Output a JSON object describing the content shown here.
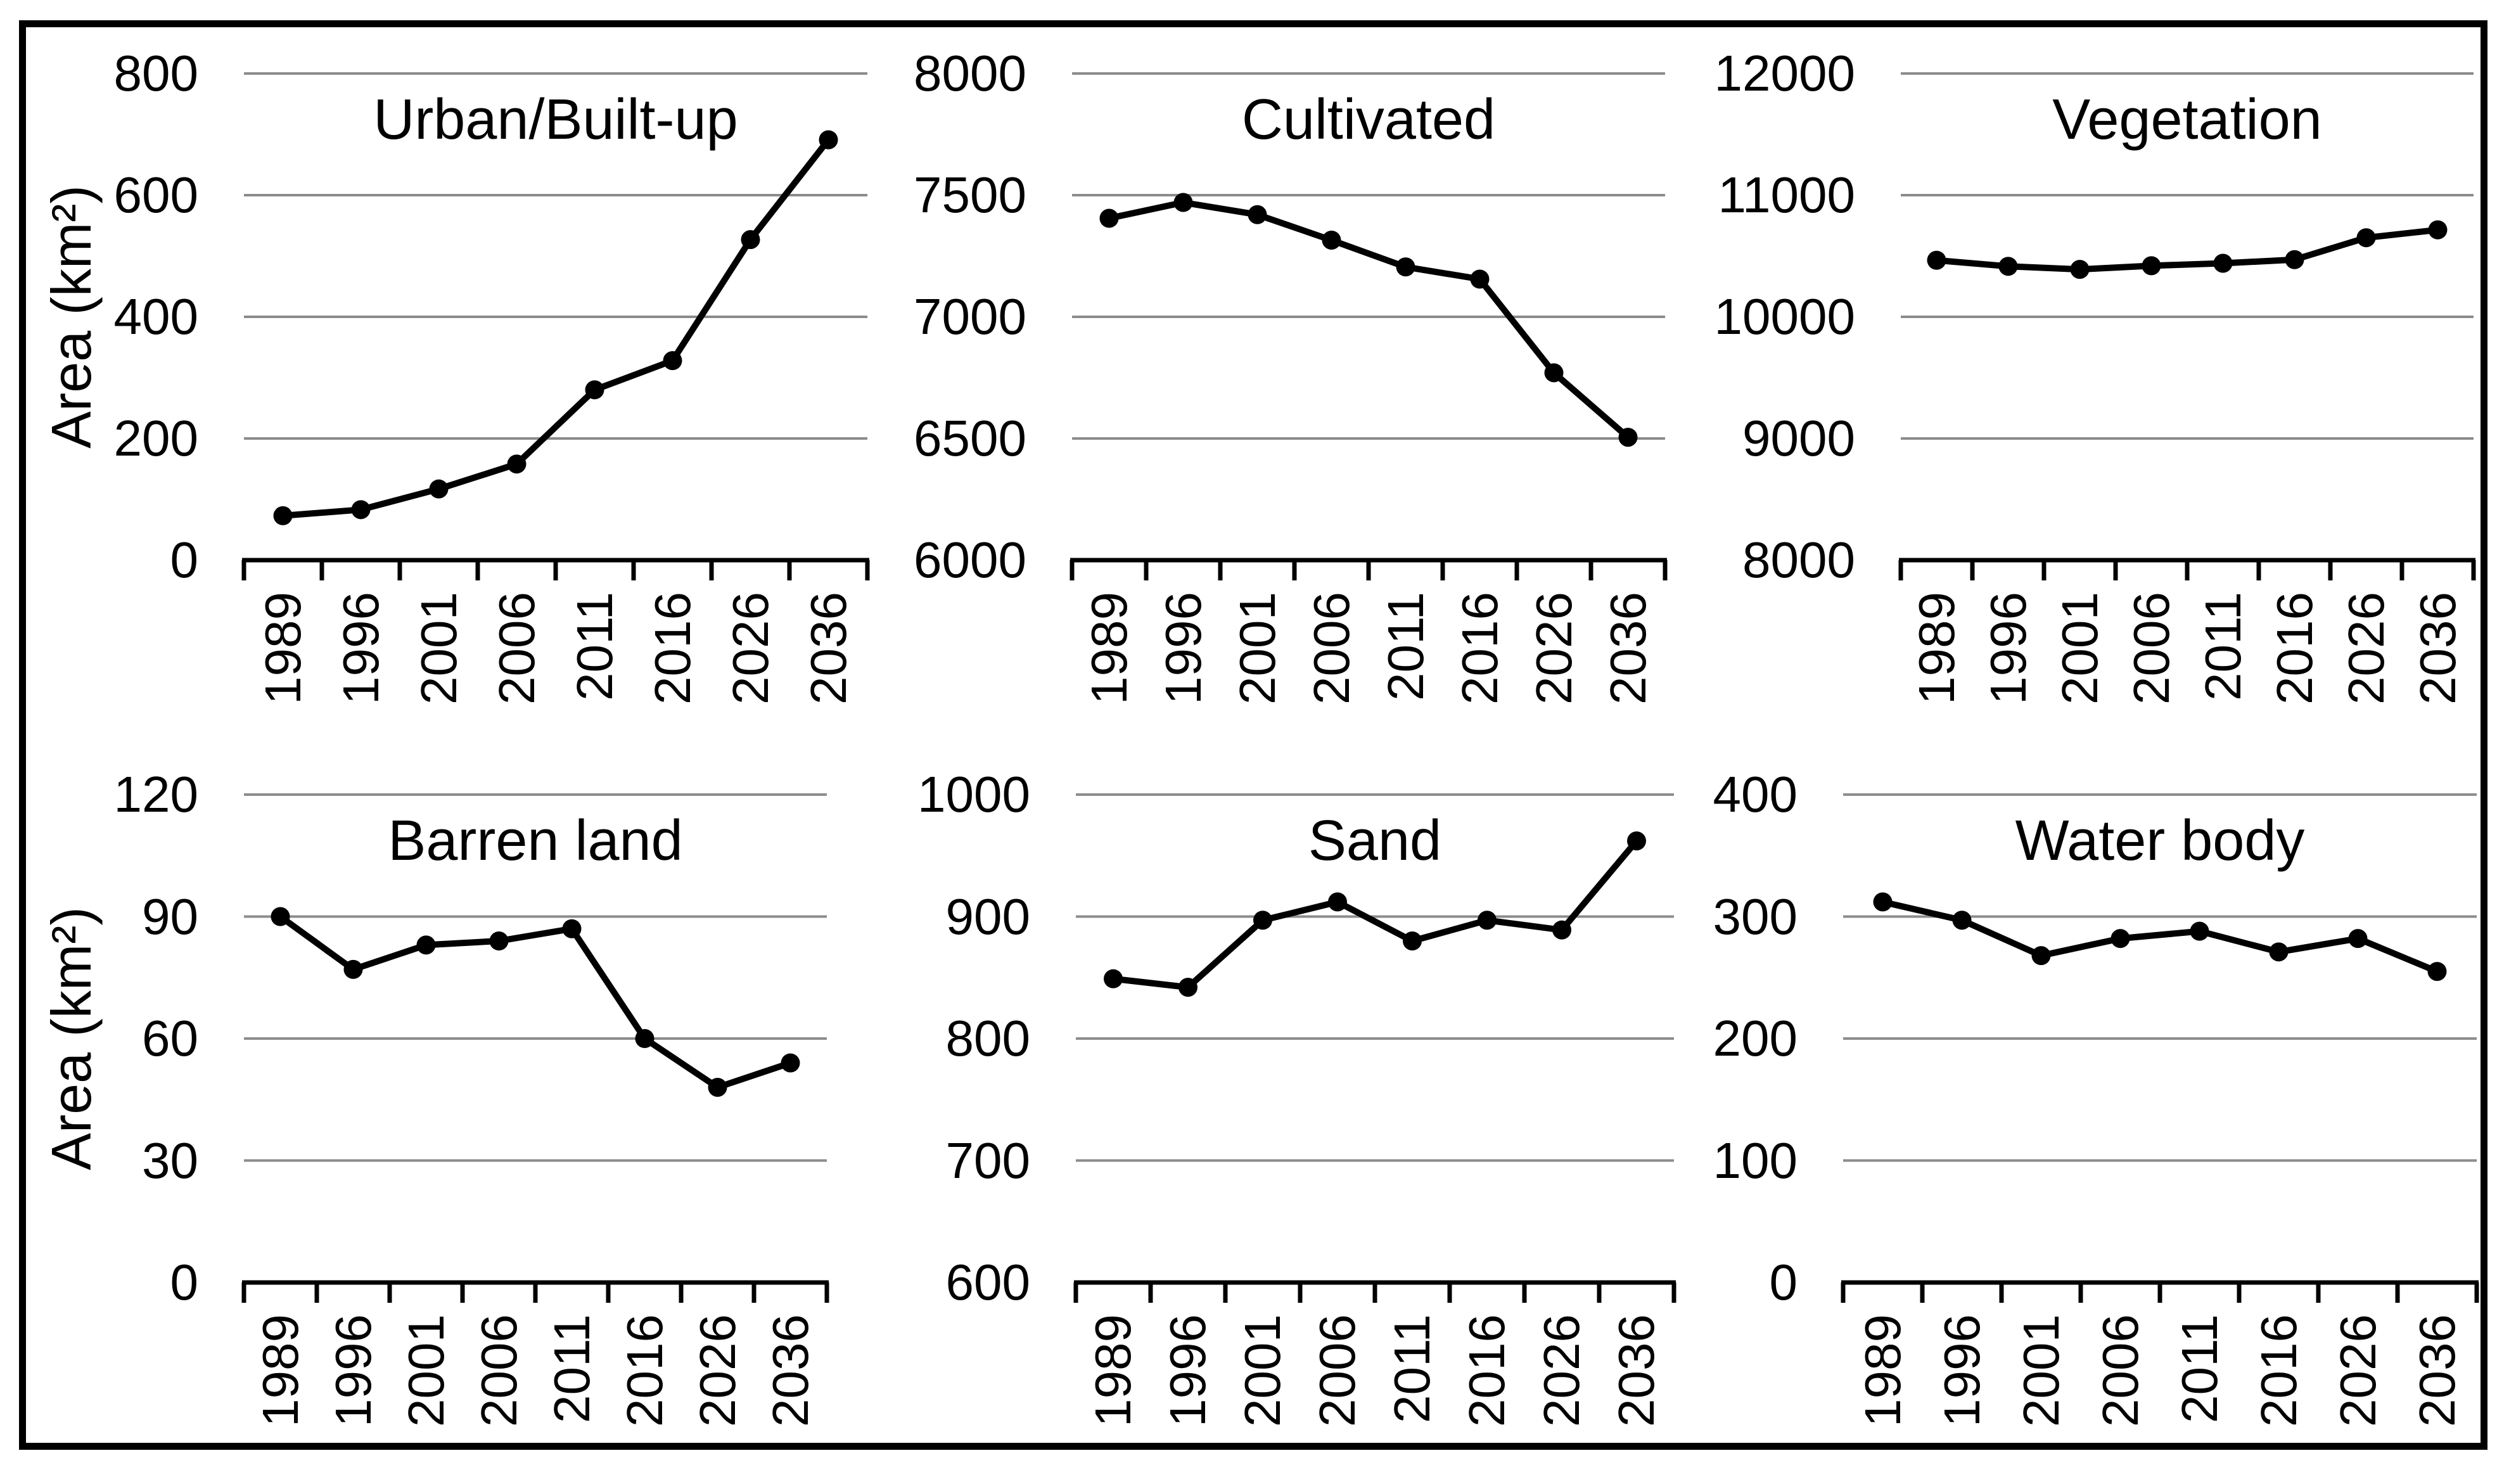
{
  "ylabel": "Area (km²)",
  "years": [
    "1989",
    "1996",
    "2001",
    "2006",
    "2011",
    "2016",
    "2026",
    "2036"
  ],
  "colors": {
    "background": "#ffffff",
    "frame": "#000000",
    "line": "#000000",
    "marker": "#000000",
    "grid": "#8c8c8c",
    "axis": "#000000",
    "text": "#000000"
  },
  "chart_data": [
    {
      "type": "line",
      "title": "Urban/Built-up",
      "ylabel": "Area (km²)",
      "categories": [
        "1989",
        "1996",
        "2001",
        "2006",
        "2011",
        "2016",
        "2026",
        "2036"
      ],
      "values": [
        73,
        83,
        117,
        158,
        280,
        328,
        527,
        691
      ],
      "ylim": [
        0,
        800
      ],
      "yticks": [
        0,
        200,
        400,
        600,
        800
      ],
      "grid": true,
      "legend_position": "none"
    },
    {
      "type": "line",
      "title": "Cultivated",
      "ylabel": "Area (km²)",
      "categories": [
        "1989",
        "1996",
        "2001",
        "2006",
        "2011",
        "2016",
        "2026",
        "2036"
      ],
      "values": [
        7405,
        7470,
        7420,
        7315,
        7205,
        7155,
        6770,
        6505
      ],
      "ylim": [
        6000,
        8000
      ],
      "yticks": [
        6000,
        6500,
        7000,
        7500,
        8000
      ],
      "grid": true,
      "legend_position": "none"
    },
    {
      "type": "line",
      "title": "Vegetation",
      "ylabel": "Area (km²)",
      "categories": [
        "1989",
        "1996",
        "2001",
        "2006",
        "2011",
        "2016",
        "2026",
        "2036"
      ],
      "values": [
        10465,
        10415,
        10390,
        10420,
        10440,
        10470,
        10650,
        10715
      ],
      "ylim": [
        8000,
        12000
      ],
      "yticks": [
        8000,
        9000,
        10000,
        11000,
        12000
      ],
      "grid": true,
      "legend_position": "none"
    },
    {
      "type": "line",
      "title": "Barren land",
      "ylabel": "Area (km²)",
      "categories": [
        "1989",
        "1996",
        "2001",
        "2006",
        "2011",
        "2016",
        "2026",
        "2036"
      ],
      "values": [
        90,
        77,
        83,
        84,
        87,
        60,
        48,
        54
      ],
      "ylim": [
        0,
        120
      ],
      "yticks": [
        0,
        30,
        60,
        90,
        120
      ],
      "grid": true,
      "legend_position": "none"
    },
    {
      "type": "line",
      "title": "Sand",
      "ylabel": "Area (km²)",
      "categories": [
        "1989",
        "1996",
        "2001",
        "2006",
        "2011",
        "2016",
        "2026",
        "2036"
      ],
      "values": [
        849,
        842,
        897,
        912,
        880,
        897,
        889,
        962
      ],
      "ylim": [
        600,
        1000
      ],
      "yticks": [
        600,
        700,
        800,
        900,
        1000
      ],
      "grid": true,
      "legend_position": "none"
    },
    {
      "type": "line",
      "title": "Water body",
      "ylabel": "Area (km²)",
      "categories": [
        "1989",
        "1996",
        "2001",
        "2006",
        "2011",
        "2016",
        "2026",
        "2036"
      ],
      "values": [
        312,
        297,
        268,
        282,
        288,
        271,
        282,
        255
      ],
      "ylim": [
        0,
        400
      ],
      "yticks": [
        0,
        100,
        200,
        300,
        400
      ],
      "grid": true,
      "legend_position": "none"
    }
  ]
}
